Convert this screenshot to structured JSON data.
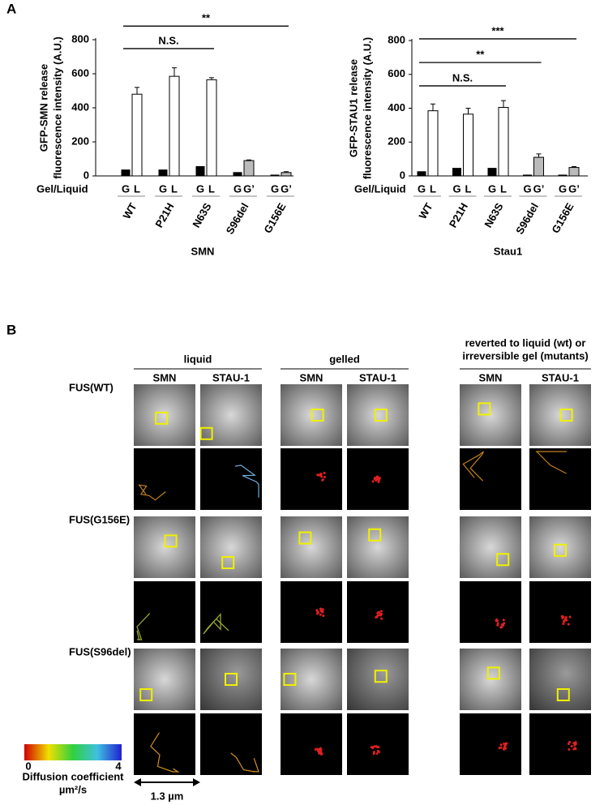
{
  "panel_a": {
    "label": "A"
  },
  "chart_data": [
    {
      "type": "bar",
      "ylabel": [
        "GFP-SMN release",
        "fluorescence intensity  (A.U.)"
      ],
      "row_label": "Gel/Liquid",
      "categories": [
        "WT",
        "P21H",
        "N63S",
        "S96del",
        "G156E"
      ],
      "bar_labels": [
        [
          "G",
          "L"
        ],
        [
          "G",
          "L"
        ],
        [
          "G",
          "L"
        ],
        [
          "G",
          "G’"
        ],
        [
          "G",
          "G’"
        ]
      ],
      "xlabel": "SMN",
      "ylim": [
        0,
        800
      ],
      "yticks": [
        0,
        200,
        400,
        600,
        800
      ],
      "series": [
        {
          "color": "#000000",
          "values": [
            35,
            35,
            55,
            20,
            5
          ]
        },
        {
          "colors": [
            "#ffffff",
            "#ffffff",
            "#ffffff",
            "#bbbbbb",
            "#bbbbbb"
          ],
          "values": [
            480,
            585,
            565,
            90,
            20
          ],
          "errors": [
            40,
            50,
            12,
            4,
            5
          ]
        }
      ],
      "annotations": [
        {
          "label": "**",
          "from": 0,
          "to": 4,
          "y": 880
        },
        {
          "label": "N.S.",
          "from": 0,
          "to": 2,
          "y": 748
        }
      ]
    },
    {
      "type": "bar",
      "ylabel": [
        "GFP-STAU1 release",
        "fluorescence intensity (A.U.)"
      ],
      "row_label": "Gel/Liquid",
      "categories": [
        "WT",
        "P21H",
        "N63S",
        "S96del",
        "G156E"
      ],
      "bar_labels": [
        [
          "G",
          "L"
        ],
        [
          "G",
          "L"
        ],
        [
          "G",
          "L"
        ],
        [
          "G",
          "G’"
        ],
        [
          "G",
          "G’"
        ]
      ],
      "xlabel": "Stau1",
      "ylim": [
        0,
        800
      ],
      "yticks": [
        0,
        200,
        400,
        600,
        800
      ],
      "series": [
        {
          "color": "#000000",
          "values": [
            25,
            45,
            45,
            5,
            5
          ]
        },
        {
          "colors": [
            "#ffffff",
            "#ffffff",
            "#ffffff",
            "#bbbbbb",
            "#bbbbbb"
          ],
          "values": [
            385,
            365,
            405,
            110,
            50
          ],
          "errors": [
            40,
            35,
            40,
            20,
            5
          ]
        }
      ],
      "annotations": [
        {
          "label": "***",
          "from": 0,
          "to": 4,
          "y": 810
        },
        {
          "label": "**",
          "from": 0,
          "to": 3,
          "y": 670
        },
        {
          "label": "N.S.",
          "from": 0,
          "to": 2,
          "y": 532
        }
      ]
    }
  ],
  "panel_b": {
    "label": "B",
    "groups": [
      {
        "title": [
          "liquid"
        ],
        "columns": [
          "SMN",
          "STAU-1"
        ]
      },
      {
        "title": [
          "gelled"
        ],
        "columns": [
          "SMN",
          "STAU-1"
        ]
      },
      {
        "title": [
          "reverted to liquid (wt) or",
          "irreversible gel (mutants)"
        ],
        "columns": [
          "SMN",
          "STAU-1"
        ]
      }
    ],
    "rows": [
      "FUS(WT)",
      "FUS(G156E)",
      "FUS(S96del)"
    ],
    "colorbar": {
      "min": 0,
      "max": 4,
      "label": "Diffusion coefficient",
      "unit": "µm²/s"
    },
    "scale_bar": "1.3 µm"
  }
}
